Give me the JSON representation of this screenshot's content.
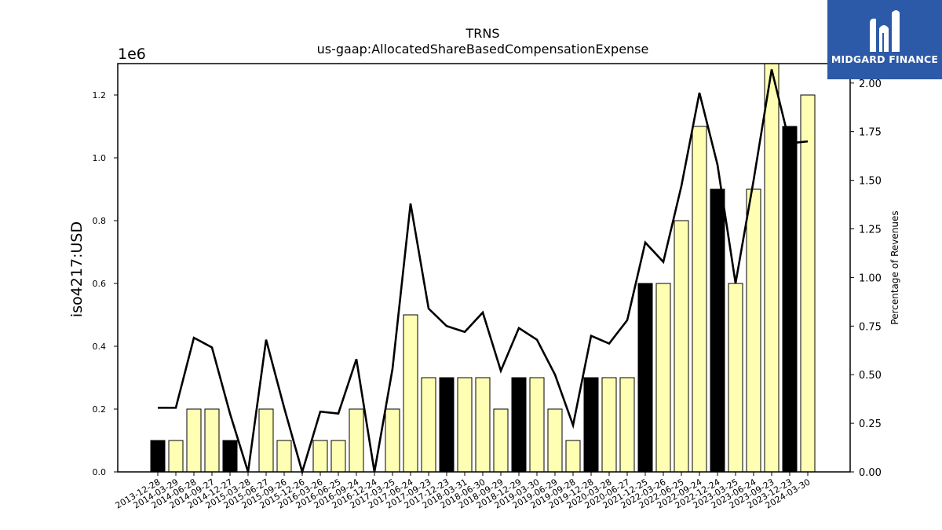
{
  "chart_data": {
    "type": "bar+line",
    "title": "TRNS",
    "subtitle": "us-gaap:AllocatedShareBasedCompensationExpense",
    "ylabel": "iso4217:USD",
    "y_offset_label": "1e6",
    "y2label": "Percentage of Revenues",
    "ylim": [
      0,
      1.3
    ],
    "y2lim": [
      0,
      2.1
    ],
    "yticks": [
      "0.0",
      "0.2",
      "0.4",
      "0.6",
      "0.8",
      "1.0",
      "1.2"
    ],
    "y2ticks": [
      "0.00",
      "0.25",
      "0.50",
      "0.75",
      "1.00",
      "1.25",
      "1.50",
      "1.75",
      "2.00"
    ],
    "categories": [
      "2013-12-28",
      "2014-03-29",
      "2014-06-28",
      "2014-09-27",
      "2014-12-27",
      "2015-03-28",
      "2015-06-27",
      "2015-09-26",
      "2015-12-26",
      "2016-03-26",
      "2016-06-25",
      "2016-09-24",
      "2016-12-24",
      "2017-03-25",
      "2017-06-24",
      "2017-09-23",
      "2017-12-23",
      "2018-03-31",
      "2018-06-30",
      "2018-09-29",
      "2018-12-29",
      "2019-03-30",
      "2019-06-29",
      "2019-09-28",
      "2019-12-28",
      "2020-03-28",
      "2020-06-27",
      "2021-12-25",
      "2022-03-26",
      "2022-06-25",
      "2022-09-24",
      "2022-12-24",
      "2023-03-25",
      "2023-06-24",
      "2023-09-23",
      "2023-12-23",
      "2024-03-30"
    ],
    "values": [
      0.1,
      0.1,
      0.2,
      0.2,
      0.1,
      0,
      0.2,
      0.1,
      0,
      0.1,
      0.1,
      0.2,
      0,
      0.2,
      0.5,
      0.3,
      0.3,
      0.3,
      0.3,
      0.2,
      0.3,
      0.3,
      0.2,
      0.1,
      0.3,
      0.3,
      0.3,
      0.6,
      0.6,
      0.8,
      1.1,
      0.9,
      0.6,
      0.9,
      1.3,
      1.1,
      1.2
    ],
    "bar_kinds": [
      "annual",
      "quarter",
      "quarter",
      "quarter",
      "annual",
      "quarter",
      "quarter",
      "quarter",
      "annual",
      "quarter",
      "quarter",
      "quarter",
      "annual",
      "quarter",
      "quarter",
      "quarter",
      "annual",
      "quarter",
      "quarter",
      "quarter",
      "annual",
      "quarter",
      "quarter",
      "quarter",
      "annual",
      "quarter",
      "quarter",
      "annual",
      "quarter",
      "quarter",
      "quarter",
      "annual",
      "quarter",
      "quarter",
      "quarter",
      "annual",
      "quarter"
    ],
    "colors": {
      "annual": "#000000",
      "quarter": "#ffffb3",
      "line": "#000000"
    },
    "pct_of_revenues": [
      0.33,
      0.33,
      0.69,
      0.64,
      0.3,
      0,
      0.68,
      0.33,
      0,
      0.31,
      0.3,
      0.58,
      0,
      0.53,
      1.38,
      0.84,
      0.75,
      0.72,
      0.82,
      0.52,
      0.74,
      0.68,
      0.5,
      0.24,
      0.7,
      0.66,
      0.78,
      1.18,
      1.08,
      1.47,
      1.95,
      1.58,
      0.97,
      1.5,
      2.07,
      1.69,
      1.7
    ]
  },
  "brand": {
    "name": "MIDGARD FINANCE"
  }
}
